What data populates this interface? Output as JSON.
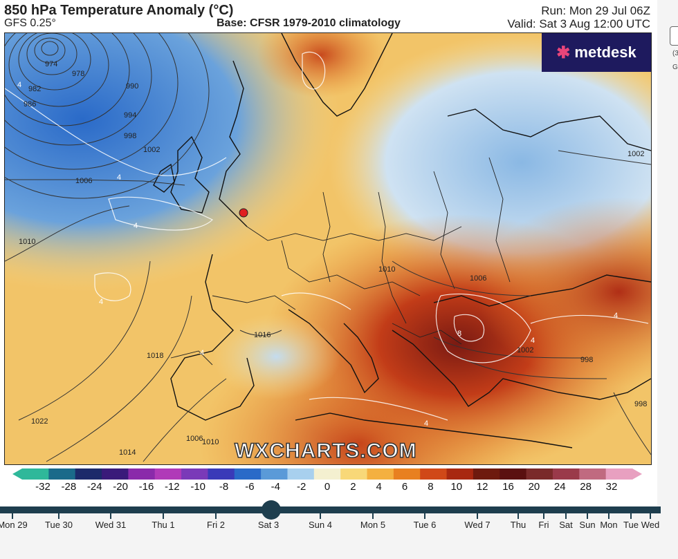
{
  "header": {
    "title": "850 hPa Temperature Anomaly (°C)",
    "model": "GFS 0.25°",
    "base": "Base: CFSR 1979-2010 climatology",
    "run": "Run: Mon 29 Jul 06Z",
    "valid": "Valid: Sat 3 Aug 12:00 UTC"
  },
  "logo": {
    "text": "metdesk",
    "icon": "metdesk-star-icon"
  },
  "watermark": "WXCHARTS.COM",
  "map": {
    "isobar_labels": [
      "974",
      "978",
      "982",
      "986",
      "990",
      "994",
      "998",
      "1002",
      "1006",
      "1010",
      "1010",
      "1014",
      "1018",
      "1022",
      "1006",
      "1010",
      "1006",
      "1002",
      "998",
      "998",
      "1002",
      "1016"
    ],
    "anomaly_labels": [
      "4",
      "4",
      "4",
      "4",
      "4",
      "4",
      "4",
      "4",
      "8"
    ],
    "marker": {
      "color": "#e02020"
    }
  },
  "colorbar": {
    "ticks": [
      "-32",
      "-28",
      "-24",
      "-20",
      "-16",
      "-12",
      "-10",
      "-8",
      "-6",
      "-4",
      "-2",
      "0",
      "2",
      "4",
      "6",
      "8",
      "10",
      "12",
      "16",
      "20",
      "24",
      "28",
      "32"
    ],
    "colors": [
      "#2fb89a",
      "#1a6a8a",
      "#1c2a6a",
      "#3a1a7a",
      "#8a2aaa",
      "#b03ab8",
      "#7a3ab8",
      "#3a3ab8",
      "#2a6ac8",
      "#5a9ad8",
      "#a8d0ee",
      "#f4f0d0",
      "#f8d878",
      "#f4b040",
      "#e88020",
      "#d04818",
      "#a82810",
      "#6e1a0e",
      "#5a1010",
      "#7a2a2a",
      "#9a3a4a",
      "#c06a80",
      "#e8a0c0"
    ]
  },
  "timeline": {
    "days": [
      "Mon 29",
      "Tue 30",
      "Wed 31",
      "Thu 1",
      "Fri 2",
      "Sat 3",
      "Sun 4",
      "Mon 5",
      "Tue 6",
      "Wed 7",
      "Thu",
      "Fri",
      "Sat",
      "Sun",
      "Mon",
      "Tue",
      "Wed"
    ],
    "selected": "Sat 3"
  },
  "side": {
    "label1": "(3",
    "label2": "G"
  }
}
